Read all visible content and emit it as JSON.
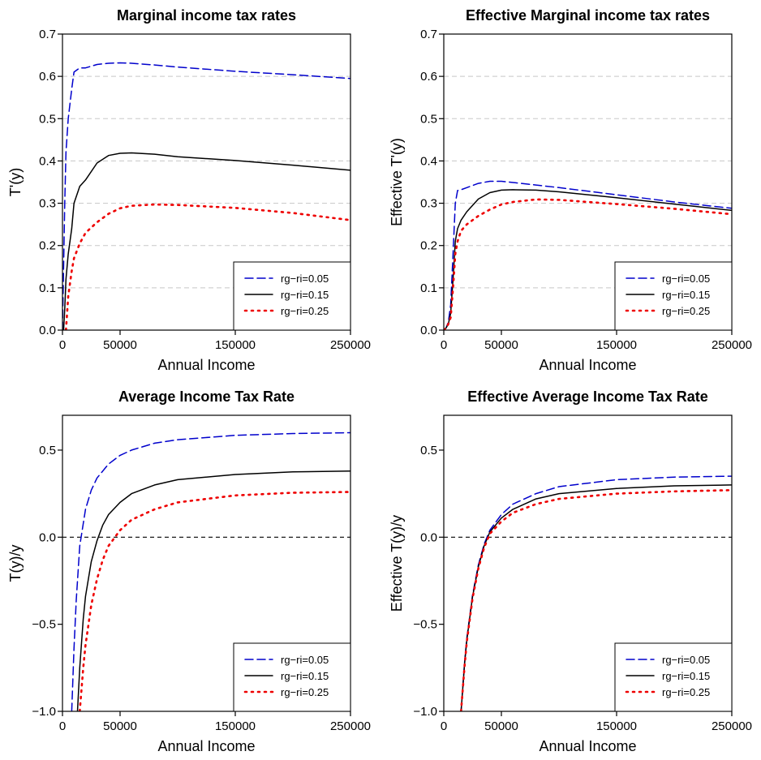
{
  "chart_data": [
    {
      "type": "line",
      "title": "Marginal income tax rates",
      "xlabel": "Annual Income",
      "ylabel": "T'(y)",
      "xlim": [
        0,
        250000
      ],
      "ylim": [
        0,
        0.7
      ],
      "xticks": [
        0,
        50000,
        150000,
        250000
      ],
      "xtick_labels": [
        "0",
        "50000",
        "150000",
        "250000"
      ],
      "yticks": [
        0,
        0.1,
        0.2,
        0.3,
        0.4,
        0.5,
        0.6,
        0.7
      ],
      "ytick_labels": [
        "0.0",
        "0.1",
        "0.2",
        "0.3",
        "0.4",
        "0.5",
        "0.6",
        "0.7"
      ],
      "grid": "horizontal-dashed",
      "zero_line": false,
      "legend": "bottom-right",
      "series": [
        {
          "name": "rg−ri=0.05",
          "style": "dashed",
          "color": "#0000cc",
          "x": [
            0,
            1000,
            2000,
            3000,
            5000,
            8000,
            10000,
            15000,
            20000,
            30000,
            40000,
            50000,
            60000,
            80000,
            100000,
            150000,
            200000,
            250000
          ],
          "y": [
            0.0,
            0.15,
            0.3,
            0.42,
            0.5,
            0.57,
            0.61,
            0.62,
            0.62,
            0.628,
            0.631,
            0.632,
            0.631,
            0.627,
            0.622,
            0.612,
            0.604,
            0.595
          ]
        },
        {
          "name": "rg−ri=0.15",
          "style": "solid",
          "color": "#000000",
          "x": [
            0,
            1000,
            2000,
            3000,
            5000,
            8000,
            10000,
            15000,
            20000,
            30000,
            40000,
            50000,
            60000,
            80000,
            100000,
            150000,
            200000,
            250000
          ],
          "y": [
            0.0,
            0.0,
            0.05,
            0.12,
            0.18,
            0.24,
            0.3,
            0.34,
            0.355,
            0.395,
            0.413,
            0.418,
            0.419,
            0.416,
            0.41,
            0.401,
            0.39,
            0.378
          ]
        },
        {
          "name": "rg−ri=0.25",
          "style": "dotted",
          "color": "#ee0000",
          "x": [
            3000,
            5000,
            8000,
            10000,
            15000,
            20000,
            30000,
            40000,
            50000,
            60000,
            80000,
            100000,
            150000,
            200000,
            250000
          ],
          "y": [
            0.0,
            0.08,
            0.14,
            0.17,
            0.205,
            0.23,
            0.255,
            0.275,
            0.288,
            0.294,
            0.297,
            0.296,
            0.289,
            0.277,
            0.26
          ]
        }
      ]
    },
    {
      "type": "line",
      "title": "Effective Marginal income tax rates",
      "xlabel": "Annual Income",
      "ylabel": "Effective T'(y)",
      "xlim": [
        0,
        250000
      ],
      "ylim": [
        0,
        0.7
      ],
      "xticks": [
        0,
        50000,
        150000,
        250000
      ],
      "xtick_labels": [
        "0",
        "50000",
        "150000",
        "250000"
      ],
      "yticks": [
        0,
        0.1,
        0.2,
        0.3,
        0.4,
        0.5,
        0.6,
        0.7
      ],
      "ytick_labels": [
        "0.0",
        "0.1",
        "0.2",
        "0.3",
        "0.4",
        "0.5",
        "0.6",
        "0.7"
      ],
      "grid": "horizontal-dashed",
      "zero_line": false,
      "legend": "bottom-right",
      "series": [
        {
          "name": "rg−ri=0.05",
          "style": "dashed",
          "color": "#0000cc",
          "x": [
            0,
            2000,
            4000,
            6000,
            8000,
            10000,
            12000,
            15000,
            20000,
            30000,
            40000,
            50000,
            60000,
            80000,
            100000,
            150000,
            200000,
            250000
          ],
          "y": [
            0.0,
            0.005,
            0.02,
            0.06,
            0.18,
            0.3,
            0.33,
            0.332,
            0.337,
            0.347,
            0.352,
            0.352,
            0.349,
            0.343,
            0.337,
            0.32,
            0.303,
            0.288
          ]
        },
        {
          "name": "rg−ri=0.15",
          "style": "solid",
          "color": "#000000",
          "x": [
            0,
            2000,
            4000,
            6000,
            8000,
            10000,
            12000,
            15000,
            20000,
            30000,
            40000,
            50000,
            60000,
            80000,
            100000,
            150000,
            200000,
            250000
          ],
          "y": [
            0.0,
            0.005,
            0.015,
            0.04,
            0.12,
            0.21,
            0.24,
            0.26,
            0.28,
            0.31,
            0.325,
            0.331,
            0.332,
            0.331,
            0.327,
            0.313,
            0.298,
            0.283
          ]
        },
        {
          "name": "rg−ri=0.25",
          "style": "dotted",
          "color": "#ee0000",
          "x": [
            0,
            2000,
            4000,
            6000,
            8000,
            10000,
            12000,
            15000,
            20000,
            30000,
            40000,
            50000,
            60000,
            80000,
            100000,
            150000,
            200000,
            250000
          ],
          "y": [
            0.0,
            0.005,
            0.015,
            0.03,
            0.1,
            0.18,
            0.21,
            0.235,
            0.25,
            0.27,
            0.285,
            0.297,
            0.303,
            0.309,
            0.308,
            0.298,
            0.287,
            0.274
          ]
        }
      ]
    },
    {
      "type": "line",
      "title": "Average Income Tax Rate",
      "xlabel": "Annual Income",
      "ylabel": "T(y)/y",
      "xlim": [
        0,
        250000
      ],
      "ylim": [
        -1.0,
        0.7
      ],
      "xticks": [
        0,
        50000,
        150000,
        250000
      ],
      "xtick_labels": [
        "0",
        "50000",
        "150000",
        "250000"
      ],
      "yticks": [
        -1.0,
        -0.5,
        0.0,
        0.5
      ],
      "ytick_labels": [
        "−1.0",
        "−0.5",
        "0.0",
        "0.5"
      ],
      "grid": "none",
      "zero_line": true,
      "legend": "bottom-right",
      "series": [
        {
          "name": "rg−ri=0.05",
          "style": "dashed",
          "color": "#0000cc",
          "x": [
            8000,
            10000,
            12000,
            15000,
            20000,
            25000,
            30000,
            40000,
            50000,
            60000,
            80000,
            100000,
            150000,
            200000,
            250000
          ],
          "y": [
            -1.0,
            -0.64,
            -0.36,
            -0.05,
            0.16,
            0.27,
            0.34,
            0.42,
            0.47,
            0.5,
            0.54,
            0.56,
            0.585,
            0.595,
            0.6
          ]
        },
        {
          "name": "rg−ri=0.15",
          "style": "solid",
          "color": "#000000",
          "x": [
            13000,
            15000,
            18000,
            20000,
            25000,
            30000,
            35000,
            40000,
            50000,
            60000,
            80000,
            100000,
            150000,
            200000,
            250000
          ],
          "y": [
            -1.0,
            -0.75,
            -0.47,
            -0.34,
            -0.14,
            -0.02,
            0.07,
            0.13,
            0.2,
            0.25,
            0.3,
            0.33,
            0.36,
            0.375,
            0.38
          ]
        },
        {
          "name": "rg−ri=0.25",
          "style": "dotted",
          "color": "#ee0000",
          "x": [
            15000,
            18000,
            20000,
            25000,
            30000,
            35000,
            40000,
            50000,
            60000,
            80000,
            100000,
            150000,
            200000,
            250000
          ],
          "y": [
            -1.0,
            -0.75,
            -0.62,
            -0.39,
            -0.24,
            -0.13,
            -0.05,
            0.04,
            0.1,
            0.16,
            0.2,
            0.24,
            0.255,
            0.26
          ]
        }
      ]
    },
    {
      "type": "line",
      "title": "Effective Average Income Tax Rate",
      "xlabel": "Annual Income",
      "ylabel": "Effective T(y)/y",
      "xlim": [
        0,
        250000
      ],
      "ylim": [
        -1.0,
        0.7
      ],
      "xticks": [
        0,
        50000,
        150000,
        250000
      ],
      "xtick_labels": [
        "0",
        "50000",
        "150000",
        "250000"
      ],
      "yticks": [
        -1.0,
        -0.5,
        0.0,
        0.5
      ],
      "ytick_labels": [
        "−1.0",
        "−0.5",
        "0.0",
        "0.5"
      ],
      "grid": "none",
      "zero_line": true,
      "legend": "bottom-right",
      "series": [
        {
          "name": "rg−ri=0.05",
          "style": "dashed",
          "color": "#0000cc",
          "x": [
            15000,
            18000,
            20000,
            25000,
            30000,
            35000,
            40000,
            50000,
            60000,
            80000,
            100000,
            150000,
            200000,
            250000
          ],
          "y": [
            -1.0,
            -0.72,
            -0.58,
            -0.33,
            -0.16,
            -0.04,
            0.04,
            0.13,
            0.19,
            0.25,
            0.29,
            0.33,
            0.345,
            0.35
          ]
        },
        {
          "name": "rg−ri=0.15",
          "style": "solid",
          "color": "#000000",
          "x": [
            15000,
            18000,
            20000,
            25000,
            30000,
            35000,
            40000,
            50000,
            60000,
            80000,
            100000,
            150000,
            200000,
            250000
          ],
          "y": [
            -1.0,
            -0.73,
            -0.59,
            -0.34,
            -0.17,
            -0.05,
            0.03,
            0.11,
            0.16,
            0.22,
            0.25,
            0.28,
            0.295,
            0.3
          ]
        },
        {
          "name": "rg−ri=0.25",
          "style": "dotted",
          "color": "#ee0000",
          "x": [
            15000,
            18000,
            20000,
            25000,
            30000,
            35000,
            40000,
            50000,
            60000,
            80000,
            100000,
            150000,
            200000,
            250000
          ],
          "y": [
            -1.0,
            -0.74,
            -0.6,
            -0.35,
            -0.18,
            -0.06,
            0.02,
            0.09,
            0.14,
            0.19,
            0.22,
            0.25,
            0.263,
            0.27
          ]
        }
      ]
    }
  ]
}
